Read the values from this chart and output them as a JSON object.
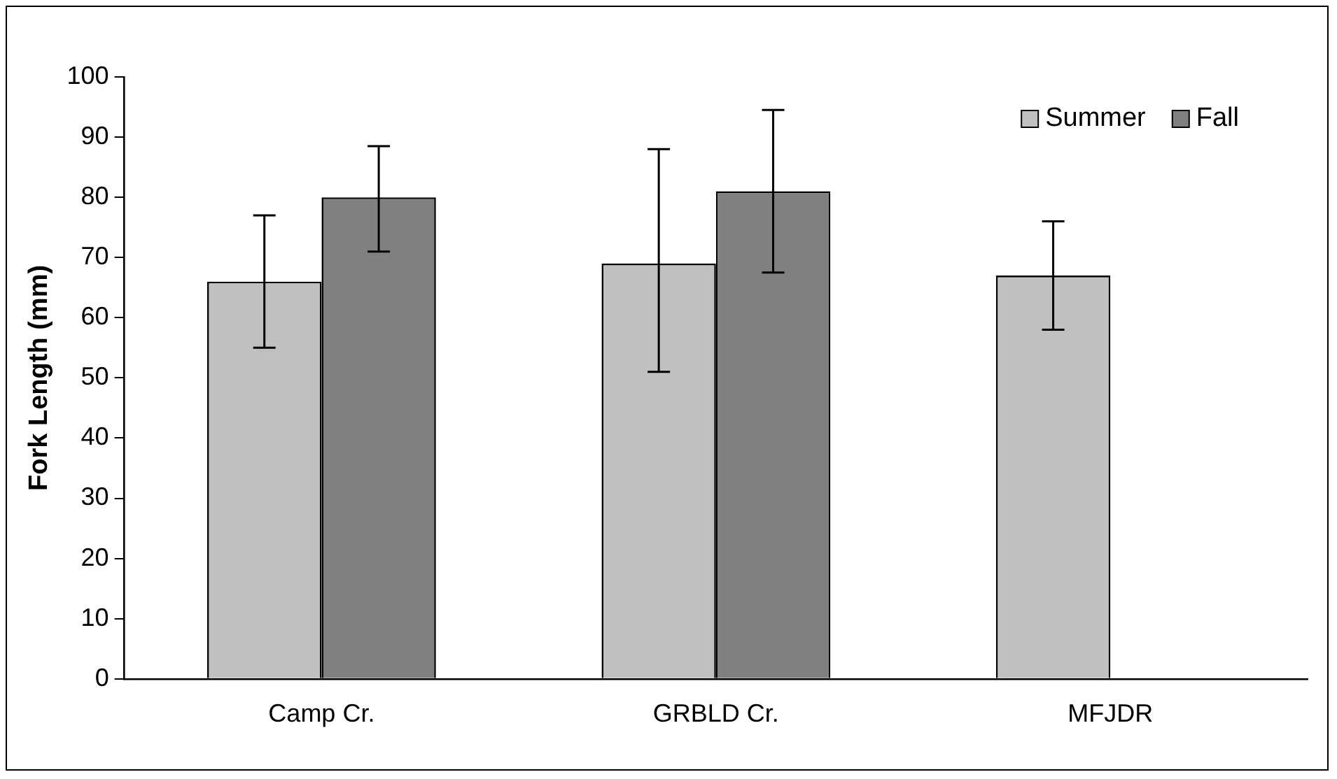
{
  "chart_data": {
    "type": "bar",
    "ylabel": "Fork Length (mm)",
    "categories": [
      "Camp Cr.",
      "GRBLD Cr.",
      "MFJDR"
    ],
    "series": [
      {
        "name": "Summer",
        "color": "#c0c0c0",
        "values": [
          66,
          69,
          67
        ],
        "errors": [
          11,
          [
            51,
            88
          ],
          9
        ]
      },
      {
        "name": "Fall",
        "color": "#808080",
        "values": [
          80,
          81,
          null
        ],
        "errors": [
          [
            71,
            88.5
          ],
          [
            67.5,
            94.5
          ],
          null
        ]
      }
    ],
    "ylim": [
      0,
      100
    ],
    "yticks": [
      0,
      10,
      20,
      30,
      40,
      50,
      60,
      70,
      80,
      90,
      100
    ],
    "grid": false,
    "legend": "top right"
  }
}
